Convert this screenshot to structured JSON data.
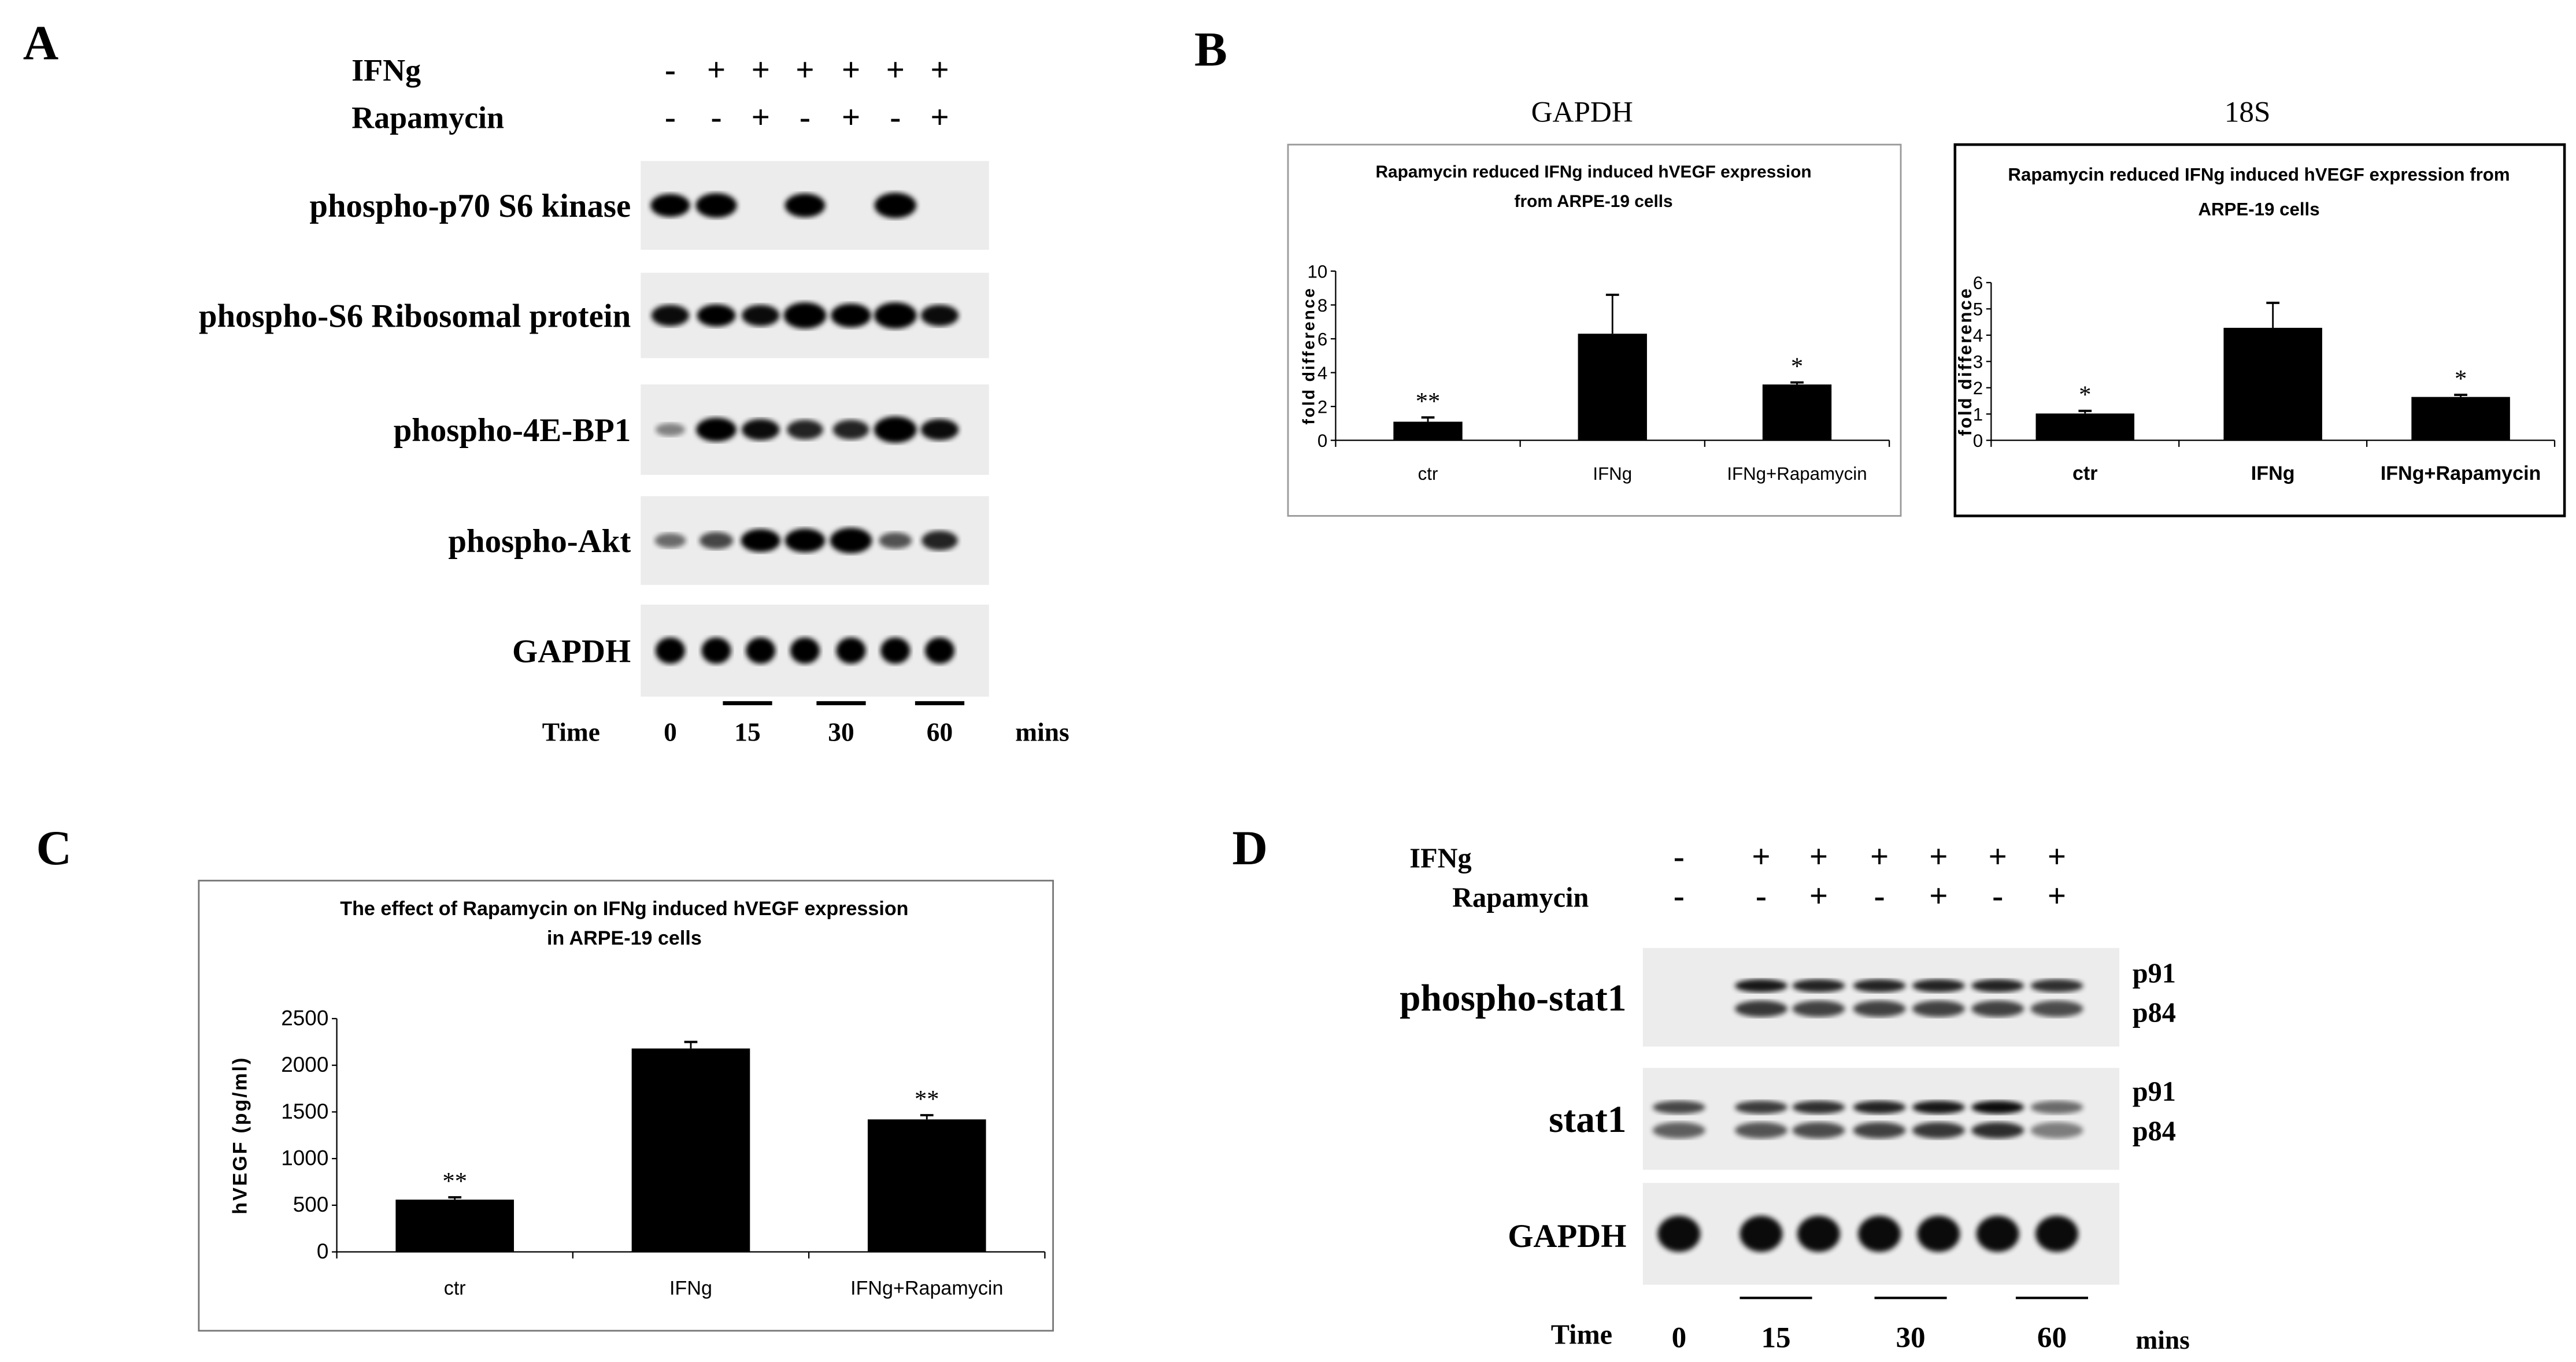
{
  "panel_labels": {
    "a": "A",
    "b": "B",
    "c": "C",
    "d": "D"
  },
  "panel_a": {
    "treatment_labels": {
      "ifng": "IFNg",
      "rapamycin": "Rapamycin"
    },
    "ifng_signs": [
      "-",
      "+",
      "+",
      "+",
      "+",
      "+",
      "+"
    ],
    "rapamycin_signs": [
      "-",
      "-",
      "+",
      "-",
      "+",
      "-",
      "+"
    ],
    "blots": [
      "phospho-p70 S6 kinase",
      "phospho-S6 Ribosomal protein",
      "phospho-4E-BP1",
      "phospho-Akt",
      "GAPDH"
    ],
    "time_label": "Time",
    "time_points": [
      "0",
      "15",
      "30",
      "60"
    ],
    "time_unit": "mins"
  },
  "panel_d": {
    "treatment_labels": {
      "ifng": "IFNg",
      "rapamycin": "Rapamycin"
    },
    "ifng_signs": [
      "-",
      "+",
      "+",
      "+",
      "+",
      "+",
      "+"
    ],
    "rapamycin_signs": [
      "-",
      "-",
      "+",
      "-",
      "+",
      "-",
      "+"
    ],
    "blots": [
      "phospho-stat1",
      "stat1",
      "GAPDH"
    ],
    "band_labels": {
      "p91": "p91",
      "p84": "p84"
    },
    "time_label": "Time",
    "time_points": [
      "0",
      "15",
      "30",
      "60"
    ],
    "time_unit": "mins"
  },
  "panel_b_headers": [
    "GAPDH",
    "18S"
  ],
  "chart_data": [
    {
      "type": "bar",
      "panel": "B-GAPDH",
      "title": [
        "Rapamycin reduced IFNg induced hVEGF expression",
        "from ARPE-19 cells"
      ],
      "categories": [
        "ctr",
        "IFNg",
        "IFNg+Rapamycin"
      ],
      "values": [
        1.1,
        6.3,
        3.3
      ],
      "errors": [
        0.25,
        2.3,
        0.12
      ],
      "significance": [
        "**",
        "",
        "*"
      ],
      "ylabel": "fold difference",
      "ylim": [
        0,
        10
      ],
      "yticks": [
        "0",
        "2",
        "4",
        "6",
        "8",
        "10"
      ],
      "color": "#000000"
    },
    {
      "type": "bar",
      "panel": "B-18S",
      "title": [
        "Rapamycin reduced IFNg induced hVEGF expression from",
        "ARPE-19 cells"
      ],
      "categories": [
        "ctr",
        "IFNg",
        "IFNg+Rapamycin"
      ],
      "values": [
        1.02,
        4.28,
        1.65
      ],
      "errors": [
        0.1,
        0.95,
        0.08
      ],
      "significance": [
        "*",
        "",
        "*"
      ],
      "ylabel": "fold difference",
      "ylim": [
        0,
        6
      ],
      "yticks": [
        "0",
        "1",
        "2",
        "3",
        "4",
        "5",
        "6"
      ],
      "color": "#000000"
    },
    {
      "type": "bar",
      "panel": "C",
      "title": [
        "The effect of Rapamycin on IFNg induced hVEGF expression",
        "in ARPE-19 cells"
      ],
      "categories": [
        "ctr",
        "IFNg",
        "IFNg+Rapamycin"
      ],
      "values": [
        560,
        2180,
        1420
      ],
      "errors": [
        25,
        70,
        45
      ],
      "significance": [
        "**",
        "",
        "**"
      ],
      "ylabel": "hVEGF (pg/ml)",
      "ylim": [
        0,
        2500
      ],
      "yticks": [
        "0",
        "500",
        "1000",
        "1500",
        "2000",
        "2500"
      ],
      "color": "#000000"
    }
  ]
}
